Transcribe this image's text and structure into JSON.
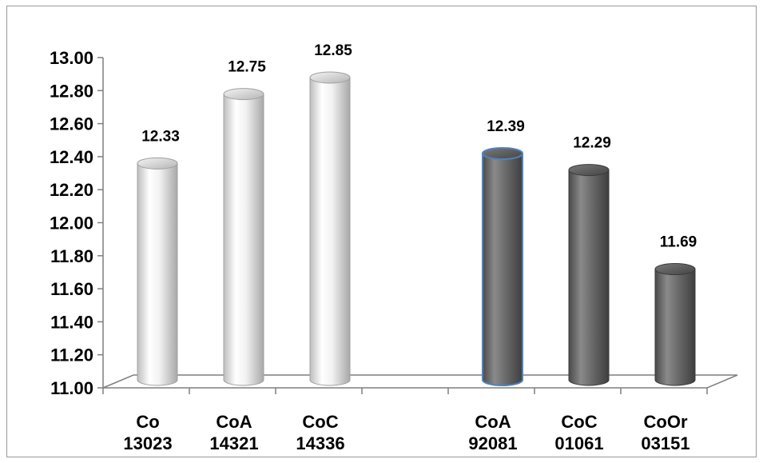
{
  "chart_data": {
    "type": "bar",
    "style": "3d-cylinder",
    "categories": [
      [
        "Co",
        "13023"
      ],
      [
        "CoA",
        "14321"
      ],
      [
        "CoC",
        "14336"
      ],
      [
        "",
        ""
      ],
      [
        "CoA",
        "92081"
      ],
      [
        "CoC",
        "01061"
      ],
      [
        "CoOr",
        "03151"
      ]
    ],
    "values": [
      12.33,
      12.75,
      12.85,
      null,
      12.39,
      12.29,
      11.69
    ],
    "value_labels": [
      "12.33",
      "12.75",
      "12.85",
      "",
      "12.39",
      "12.29",
      "11.69"
    ],
    "bar_colors": [
      "light-gray",
      "light-gray",
      "light-gray",
      "",
      "dark-gray",
      "dark-gray",
      "dark-gray"
    ],
    "ylim": [
      11.0,
      13.0
    ],
    "yticks": [
      "11.00",
      "11.20",
      "11.40",
      "11.60",
      "11.80",
      "12.00",
      "12.20",
      "12.40",
      "12.60",
      "12.80",
      "13.00"
    ],
    "grid": false,
    "legend": "none",
    "title": "",
    "xlabel": "",
    "ylabel": ""
  }
}
